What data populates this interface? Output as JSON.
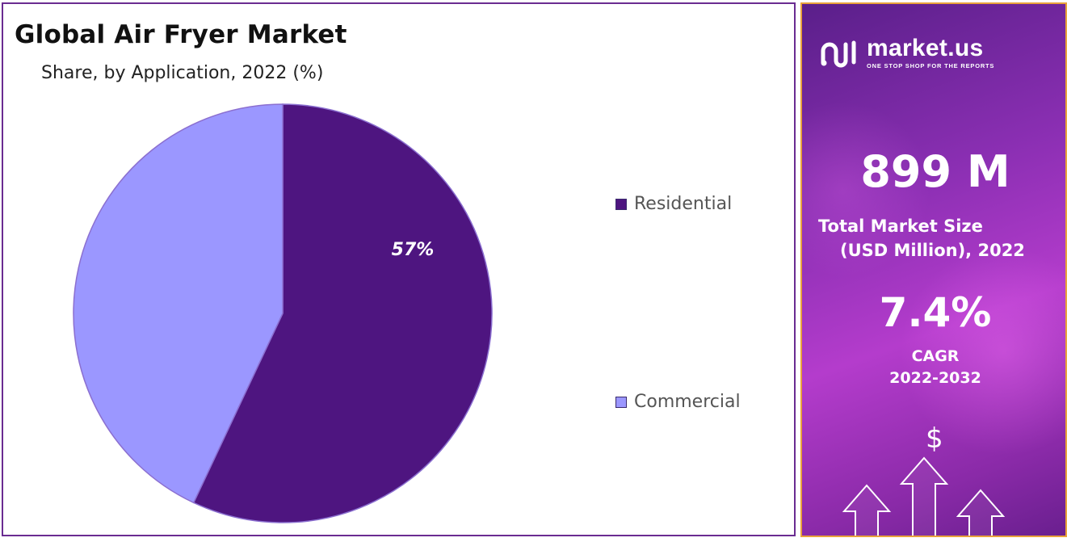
{
  "title": "Global Air Fryer Market",
  "subtitle": "Share, by Application, 2022 (%)",
  "chart_data": {
    "type": "pie",
    "title": "Global Air Fryer Market",
    "subtitle": "Share, by Application, 2022 (%)",
    "categories": [
      "Residential",
      "Commercial"
    ],
    "values": [
      57,
      43
    ],
    "data_labels": [
      "57%",
      ""
    ],
    "colors": [
      "#4e1580",
      "#9b97ff"
    ],
    "legend_position": "right"
  },
  "sidebar": {
    "brand_name": "market.us",
    "brand_tagline": "ONE STOP SHOP FOR THE REPORTS",
    "market_size_value": "899 M",
    "market_size_label_line1": "Total Market Size",
    "market_size_label_line2": "(USD Million), 2022",
    "cagr_value": "7.4%",
    "cagr_label": "CAGR",
    "cagr_period": "2022-2032",
    "currency_symbol": "$"
  }
}
